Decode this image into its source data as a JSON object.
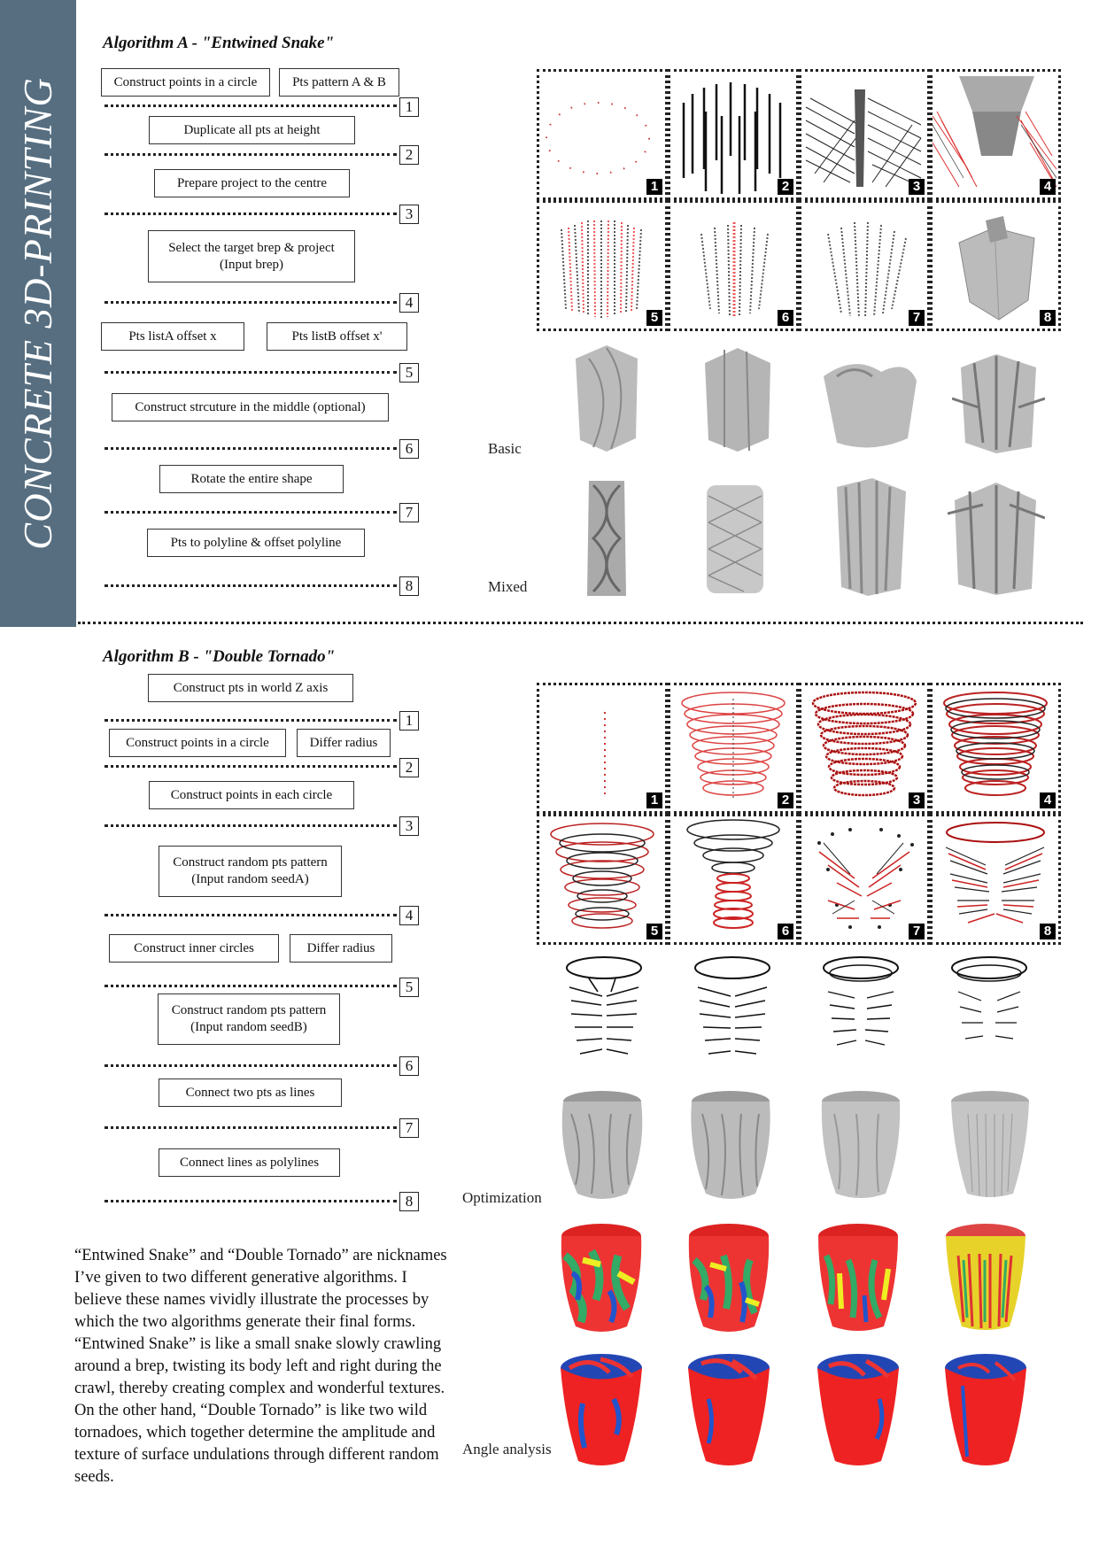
{
  "sidebar": {
    "title": "CONCRETE 3D-PRINTING",
    "color": "#566e80"
  },
  "algorithm_a": {
    "title": "Algorithm A - \"Entwined Snake\"",
    "steps": [
      "Construct points in a circle",
      "Pts pattern A & B",
      "Duplicate all pts at height",
      "Prepare project to the centre",
      "Select the target brep & project\n(Input brep)",
      "Pts listA offset x",
      "Pts listB offset x'",
      "Construct strcuture in the middle (optional)",
      "Rotate the entire shape",
      "Pts to polyline & offset polyline"
    ],
    "numbers": [
      "1",
      "2",
      "3",
      "4",
      "5",
      "6",
      "7",
      "8"
    ],
    "grid_numbers": [
      "1",
      "2",
      "3",
      "4",
      "5",
      "6",
      "7",
      "8"
    ],
    "row_labels": [
      "Basic",
      "Mixed"
    ]
  },
  "algorithm_b": {
    "title": "Algorithm B - \"Double Tornado\"",
    "steps": [
      "Construct pts in world Z axis",
      "Construct points in a circle",
      "Differ radius",
      "Construct points in each circle",
      "Construct random pts pattern\n(Input random seedA)",
      "Construct inner circles",
      "Differ radius",
      "Construct random pts pattern\n(Input random seedB)",
      "Connect two pts as lines",
      "Connect lines as polylines"
    ],
    "numbers": [
      "1",
      "2",
      "3",
      "4",
      "5",
      "6",
      "7",
      "8"
    ],
    "grid_numbers": [
      "1",
      "2",
      "3",
      "4",
      "5",
      "6",
      "7",
      "8"
    ],
    "row_labels": [
      "Optimization",
      "Angle analysis"
    ]
  },
  "description": "“Entwined Snake” and “Double Tornado” are nicknames I’ve given to two different generative algorithms. I believe these names vividly illustrate the processes by which the two algorithms generate their final forms. “Entwined Snake” is like a small snake slowly crawling around a brep, twisting its body left and right during the crawl, thereby creating complex and wonderful textures. On the other hand, “Double Tornado” is like two wild tornadoes, which together determine the amplitude and texture of surface undulations through different random seeds."
}
